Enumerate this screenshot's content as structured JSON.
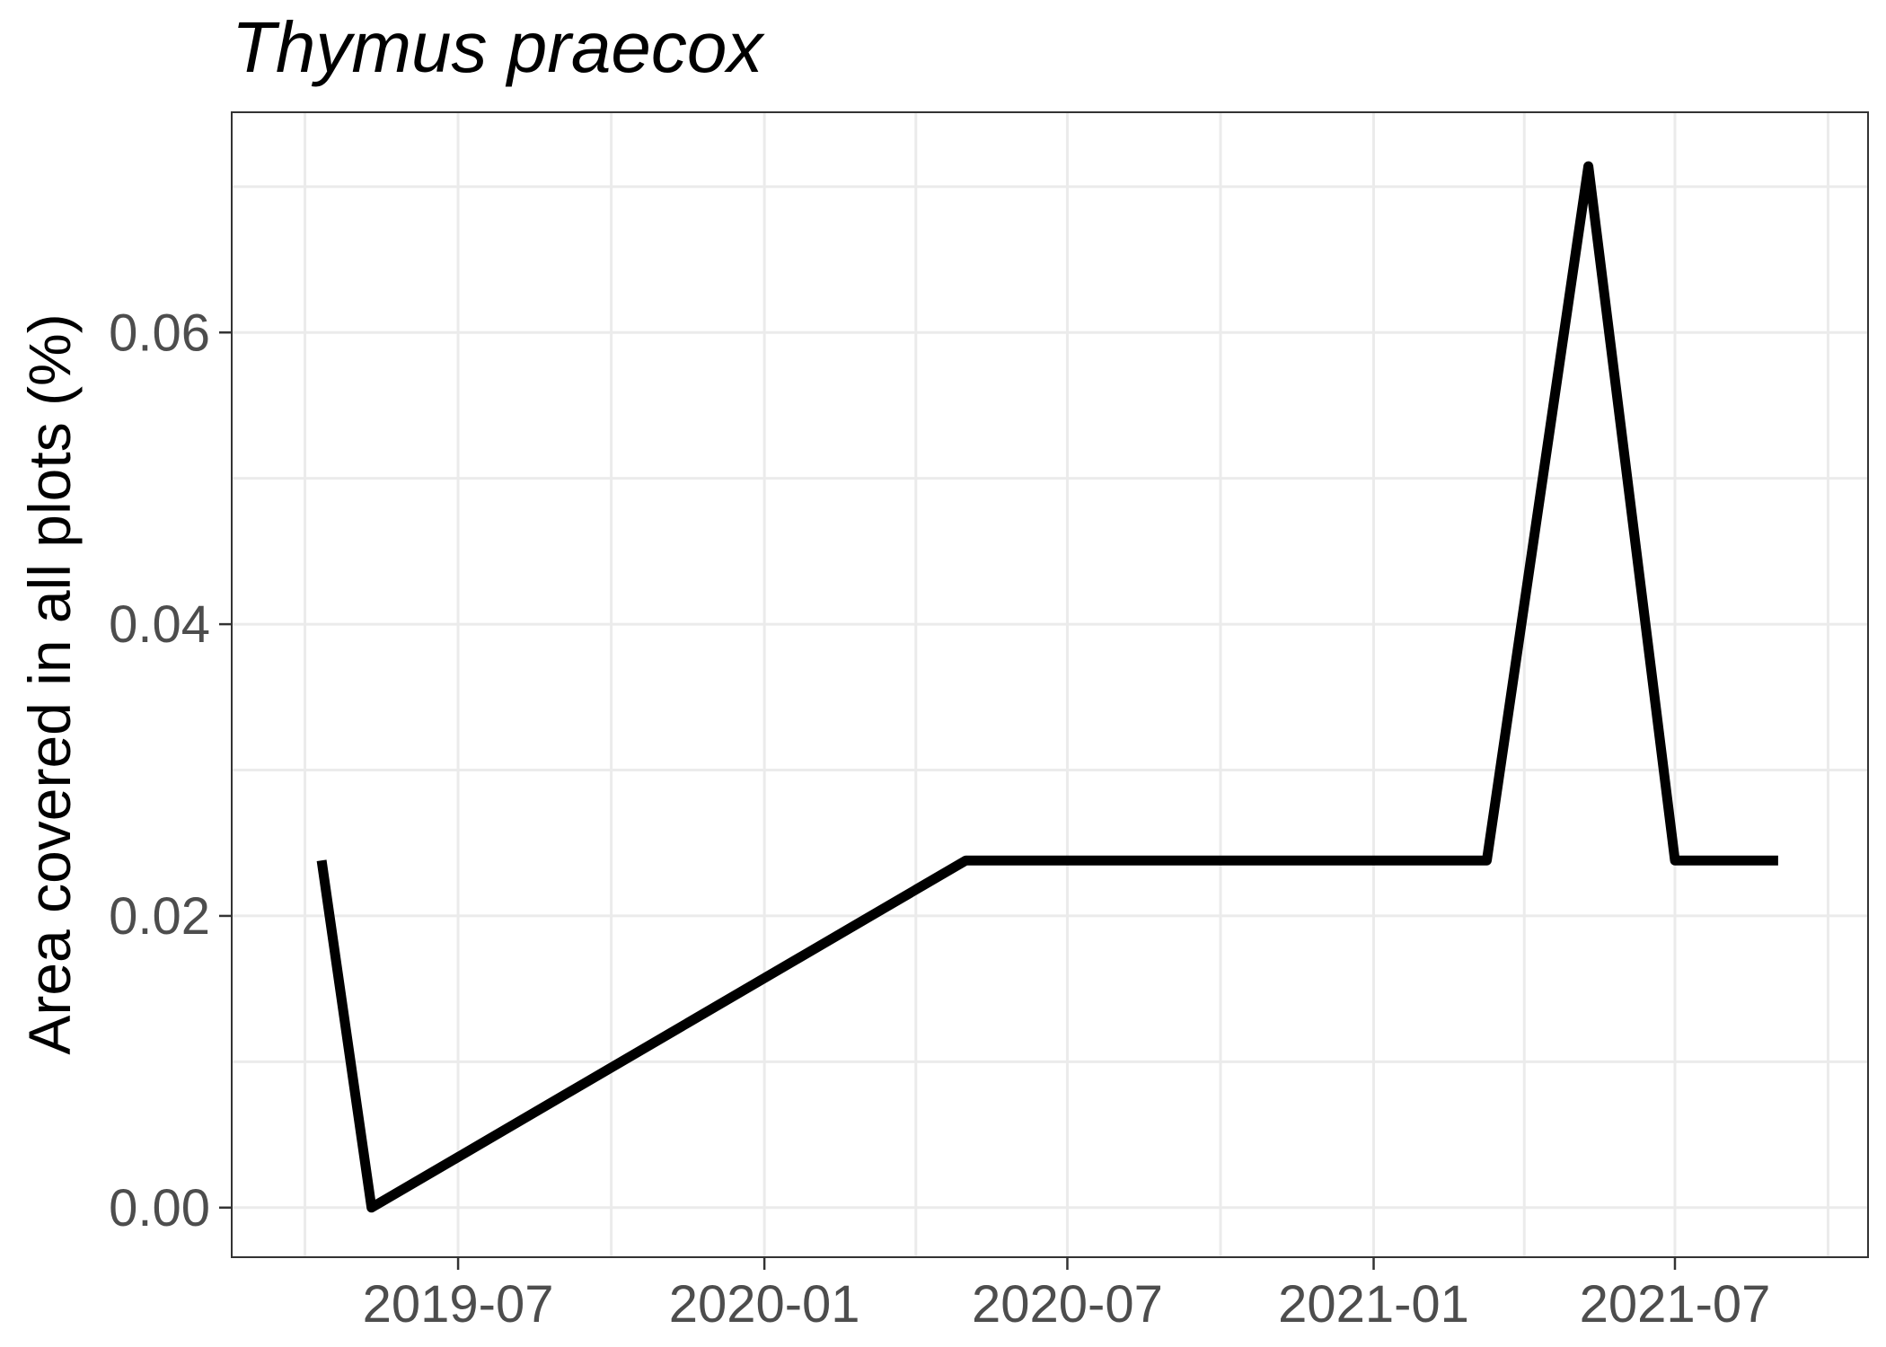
{
  "chart_data": {
    "type": "line",
    "title": "Thymus praecox",
    "xlabel": "",
    "ylabel": "Area covered in all plots (%)",
    "x_ticks": [
      "2019-07",
      "2020-01",
      "2020-07",
      "2021-01",
      "2021-07"
    ],
    "y_ticks": [
      "0.00",
      "0.02",
      "0.04",
      "0.06"
    ],
    "xlim": [
      "2019-02-15",
      "2021-10-25"
    ],
    "ylim": [
      -0.0034,
      0.0751
    ],
    "grid": true,
    "series": [
      {
        "x": [
          "2019-04-10",
          "2019-05-10",
          "2020-05-01",
          "2021-03-10",
          "2021-05-10",
          "2021-07-01",
          "2021-09-01"
        ],
        "values": [
          0.0238,
          0.0,
          0.0238,
          0.0238,
          0.0714,
          0.0238,
          0.0238
        ]
      }
    ]
  }
}
